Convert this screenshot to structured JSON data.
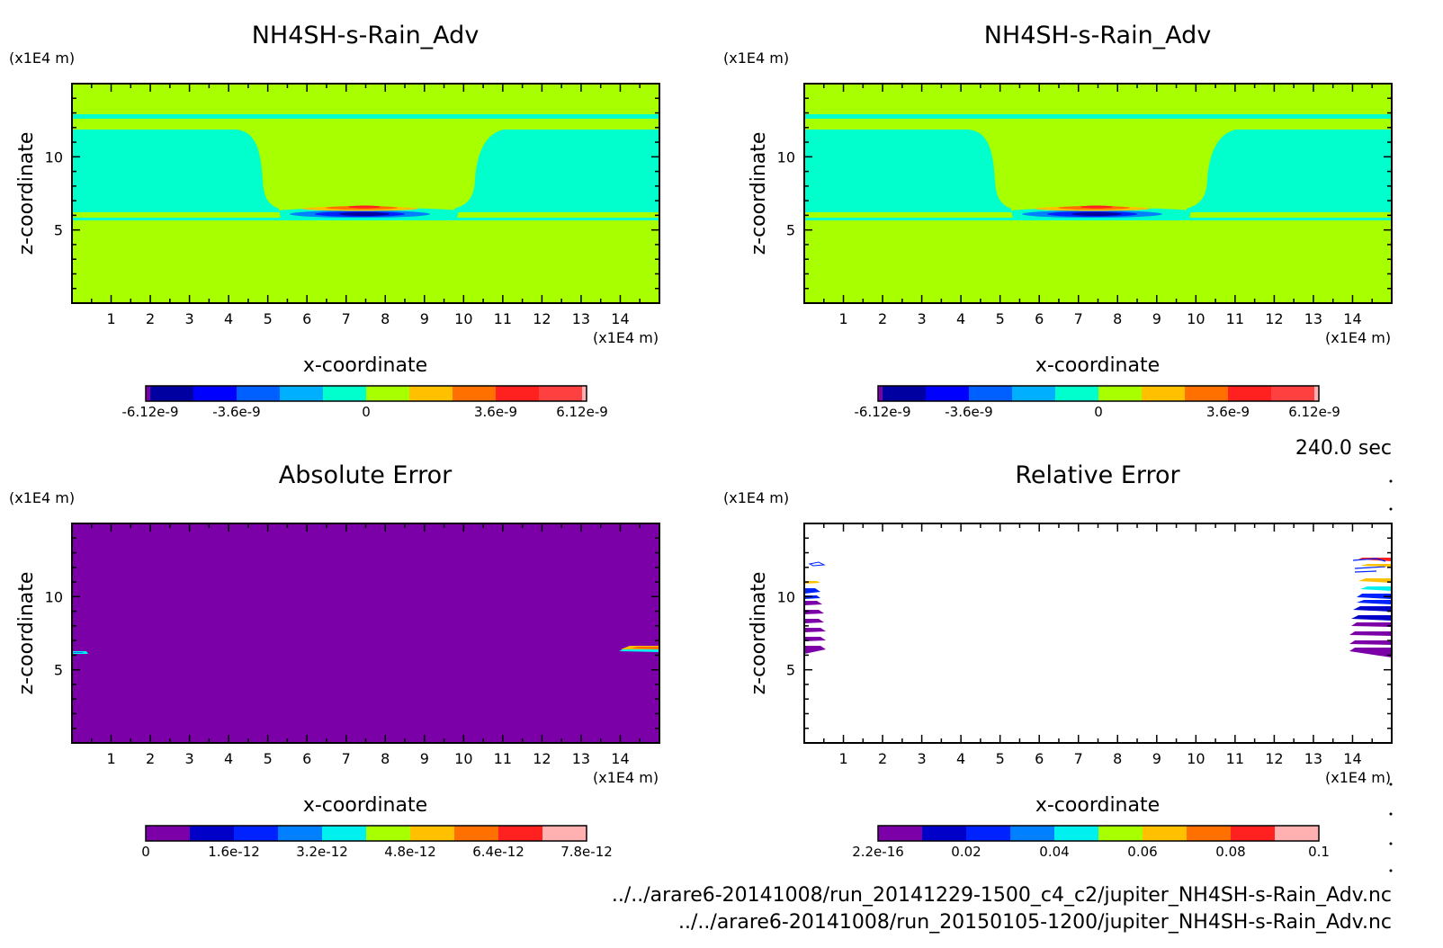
{
  "colors": {
    "field": [
      "#7c00a8",
      "#0000c8",
      "#0022ff",
      "#0080ff",
      "#00f0f0",
      "#a8ff00",
      "#ffc000",
      "#ff7000",
      "#ff2020",
      "#ffb0b0"
    ],
    "background_zero": "#a8ff00",
    "negative_band": "#00ffcc",
    "error_fill": "#7c00a8"
  },
  "time_label": "240.0 sec",
  "footer": {
    "file1": "../../arare6-20141008/run_20141229-1500_c4_c2/jupiter_NH4SH-s-Rain_Adv.nc",
    "file2": "../../arare6-20141008/run_20150105-1200/jupiter_NH4SH-s-Rain_Adv.nc"
  },
  "panels": [
    {
      "id": "top-left",
      "title": "NH4SH-s-Rain_Adv",
      "y_unit": "(x1E4 m)",
      "x_unit": "(x1E4 m)",
      "xlabel": "x-coordinate",
      "ylabel": "z-coordinate",
      "colorbar_labels": [
        "-6.12e-9",
        "-3.6e-9",
        "0",
        "3.6e-9",
        "6.12e-9"
      ]
    },
    {
      "id": "top-right",
      "title": "NH4SH-s-Rain_Adv",
      "y_unit": "(x1E4 m)",
      "x_unit": "(x1E4 m)",
      "xlabel": "x-coordinate",
      "ylabel": "z-coordinate",
      "colorbar_labels": [
        "-6.12e-9",
        "-3.6e-9",
        "0",
        "3.6e-9",
        "6.12e-9"
      ]
    },
    {
      "id": "bottom-left",
      "title": "Absolute Error",
      "y_unit": "(x1E4 m)",
      "x_unit": "(x1E4 m)",
      "xlabel": "x-coordinate",
      "ylabel": "z-coordinate",
      "colorbar_labels": [
        "0",
        "1.6e-12",
        "3.2e-12",
        "4.8e-12",
        "6.4e-12",
        "7.8e-12"
      ]
    },
    {
      "id": "bottom-right",
      "title": "Relative Error",
      "y_unit": "(x1E4 m)",
      "x_unit": "(x1E4 m)",
      "xlabel": "x-coordinate",
      "ylabel": "z-coordinate",
      "colorbar_labels": [
        "2.2e-16",
        "0.02",
        "0.04",
        "0.06",
        "0.08",
        "0.1"
      ]
    }
  ],
  "chart_data": [
    {
      "type": "heatmap",
      "title": "NH4SH-s-Rain_Adv",
      "xlabel": "x-coordinate",
      "ylabel": "z-coordinate",
      "x_ticks": [
        1,
        2,
        3,
        4,
        5,
        6,
        7,
        8,
        9,
        10,
        11,
        12,
        13,
        14
      ],
      "y_ticks": [
        5,
        10
      ],
      "xlim": [
        0,
        15
      ],
      "ylim": [
        0,
        15
      ],
      "colorbar_range": [
        -6.12e-09,
        6.12e-09
      ],
      "features": [
        {
          "label": "negative band",
          "x_range": [
            0,
            5
          ],
          "z_range": [
            6,
            11.5
          ]
        },
        {
          "label": "negative band",
          "x_range": [
            10,
            15
          ],
          "z_range": [
            6,
            11.5
          ]
        },
        {
          "label": "dipole min",
          "x": 7.7,
          "z": 6.1
        },
        {
          "label": "dipole max",
          "x": 7.7,
          "z": 6.6
        }
      ]
    },
    {
      "type": "heatmap",
      "title": "NH4SH-s-Rain_Adv",
      "xlabel": "x-coordinate",
      "ylabel": "z-coordinate",
      "x_ticks": [
        1,
        2,
        3,
        4,
        5,
        6,
        7,
        8,
        9,
        10,
        11,
        12,
        13,
        14
      ],
      "y_ticks": [
        5,
        10
      ],
      "xlim": [
        0,
        15
      ],
      "ylim": [
        0,
        15
      ],
      "colorbar_range": [
        -6.12e-09,
        6.12e-09
      ]
    },
    {
      "type": "heatmap",
      "title": "Absolute Error",
      "xlabel": "x-coordinate",
      "ylabel": "z-coordinate",
      "x_ticks": [
        1,
        2,
        3,
        4,
        5,
        6,
        7,
        8,
        9,
        10,
        11,
        12,
        13,
        14
      ],
      "y_ticks": [
        5,
        10
      ],
      "xlim": [
        0,
        15
      ],
      "ylim": [
        0,
        15
      ],
      "colorbar_range": [
        0,
        7.8e-12
      ]
    },
    {
      "type": "heatmap",
      "title": "Relative Error",
      "xlabel": "x-coordinate",
      "ylabel": "z-coordinate",
      "x_ticks": [
        1,
        2,
        3,
        4,
        5,
        6,
        7,
        8,
        9,
        10,
        11,
        12,
        13,
        14
      ],
      "y_ticks": [
        5,
        10
      ],
      "xlim": [
        0,
        15
      ],
      "ylim": [
        0,
        15
      ],
      "colorbar_range": [
        2.2e-16,
        0.1
      ]
    }
  ]
}
